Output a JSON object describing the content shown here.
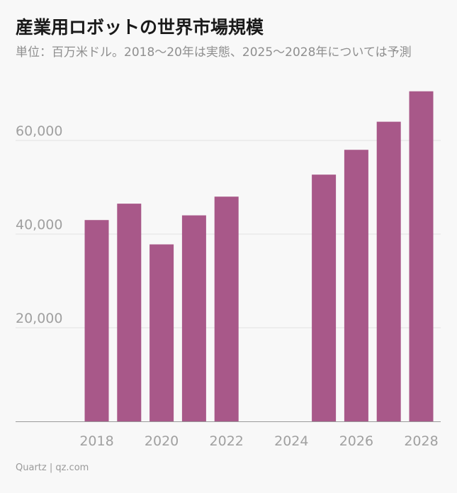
{
  "title": "産業用ロボットの世界市場規模",
  "subtitle": "単位：百万米ドル。2018〜20年は実態、2025〜2028年については予測",
  "footer": "Quartz | qz.com",
  "colors": {
    "bar": "#a85889",
    "grid": "#e2e2e2",
    "axis": "#9a9a9a",
    "tick_label": "#a0a0a0"
  },
  "chart_data": {
    "type": "bar",
    "categories": [
      2018,
      2019,
      2020,
      2021,
      2022,
      2023,
      2024,
      2025,
      2026,
      2027,
      2028
    ],
    "values": [
      43000,
      46500,
      37800,
      44000,
      48000,
      null,
      null,
      52700,
      58000,
      64000,
      70500
    ],
    "x_tick_labels": [
      "2018",
      "2020",
      "2022",
      "2024",
      "2026",
      "2028"
    ],
    "y_ticks": [
      20000,
      40000,
      60000
    ],
    "y_tick_labels": [
      "20,000",
      "40,000",
      "60,000"
    ],
    "ylim": [
      0,
      72000
    ],
    "xlabel": "",
    "ylabel": "",
    "grid": true,
    "legend": "none"
  }
}
